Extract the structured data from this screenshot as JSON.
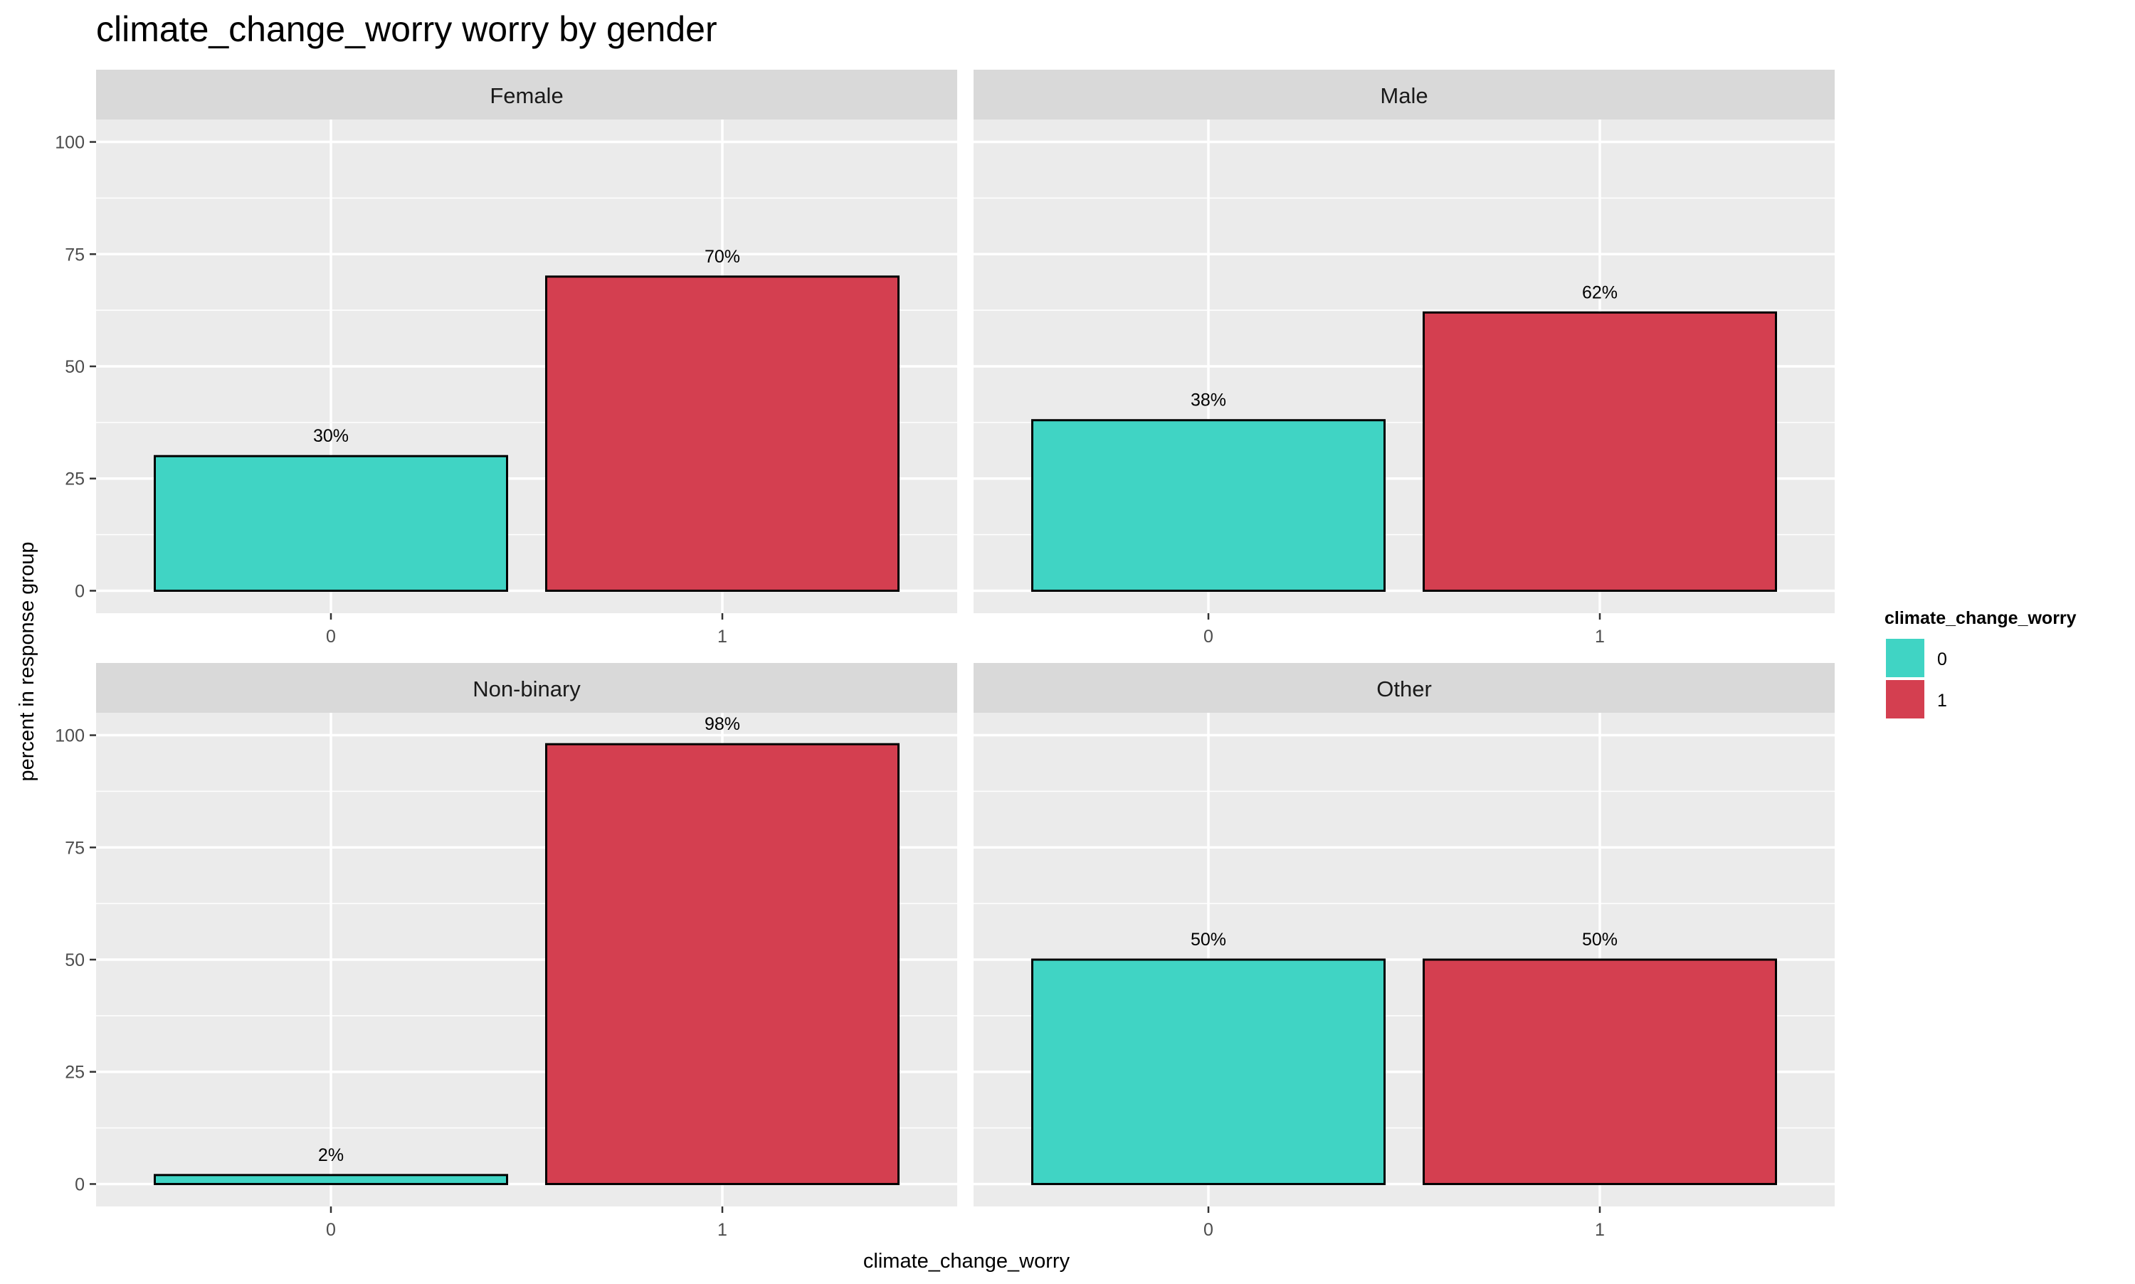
{
  "chart_data": {
    "type": "bar",
    "title": "climate_change_worry worry by gender",
    "xlabel": "climate_change_worry",
    "ylabel": "percent in response group",
    "ylim": [
      0,
      100
    ],
    "y_ticks": [
      0,
      25,
      50,
      75,
      100
    ],
    "categories": [
      "0",
      "1"
    ],
    "grid": true,
    "legend": {
      "title": "climate_change_worry",
      "position": "right",
      "items": [
        {
          "label": "0",
          "color": "#40D4C4"
        },
        {
          "label": "1",
          "color": "#D43F50"
        }
      ]
    },
    "panels": [
      {
        "name": "Female",
        "values": [
          30,
          70
        ],
        "labels": [
          "30%",
          "70%"
        ]
      },
      {
        "name": "Male",
        "values": [
          38,
          62
        ],
        "labels": [
          "38%",
          "62%"
        ]
      },
      {
        "name": "Non-binary",
        "values": [
          2,
          98
        ],
        "labels": [
          "2%",
          "98%"
        ]
      },
      {
        "name": "Other",
        "values": [
          50,
          50
        ],
        "labels": [
          "50%",
          "50%"
        ]
      }
    ]
  }
}
